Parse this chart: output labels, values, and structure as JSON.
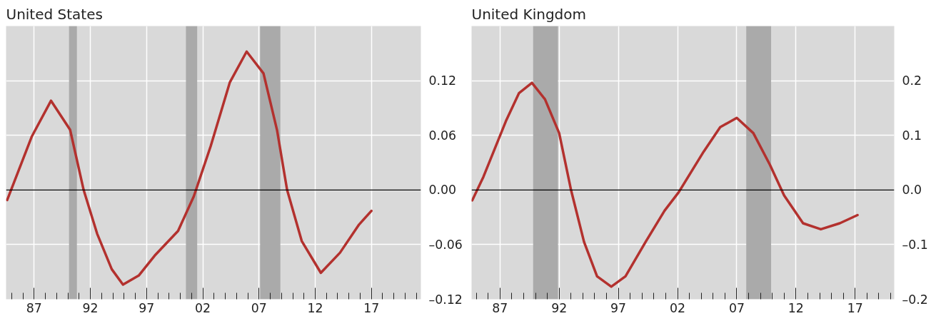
{
  "chart_data": [
    {
      "type": "line",
      "title": "United States",
      "x": [
        1984.6,
        1986.8,
        1988.5,
        1990.2,
        1991.4,
        1992.6,
        1993.9,
        1994.9,
        1996.3,
        1997.8,
        1999.8,
        2001.2,
        2002.7,
        2004.4,
        2005.9,
        2007.4,
        2008.6,
        2009.5,
        2010.8,
        2012.5,
        2014.2,
        2015.9,
        2017.0
      ],
      "series": [
        {
          "color": "#b3312e",
          "values": [
            -0.011,
            0.059,
            0.098,
            0.066,
            0.0,
            -0.048,
            -0.087,
            -0.104,
            -0.094,
            -0.071,
            -0.045,
            -0.007,
            0.048,
            0.118,
            0.152,
            0.128,
            0.066,
            0.0,
            -0.056,
            -0.091,
            -0.069,
            -0.038,
            -0.023
          ]
        }
      ],
      "xlim": [
        1984.5,
        2021.4
      ],
      "xticks": [
        {
          "value": 1987,
          "label": "87"
        },
        {
          "value": 1992,
          "label": "92"
        },
        {
          "value": 1997,
          "label": "97"
        },
        {
          "value": 2002,
          "label": "02"
        },
        {
          "value": 2007,
          "label": "07"
        },
        {
          "value": 2012,
          "label": "12"
        },
        {
          "value": 2017,
          "label": "17"
        }
      ],
      "ylim": [
        -0.12,
        0.18
      ],
      "yticks": [
        {
          "value": -0.12,
          "label": "–0.12"
        },
        {
          "value": -0.06,
          "label": "–0.06"
        },
        {
          "value": 0,
          "label": "0.00"
        },
        0.06,
        0.12
      ],
      "grid": true,
      "bands": [
        {
          "axis": "x",
          "from": 1990.1,
          "to": 1990.8,
          "color": "#aaaaaa"
        },
        {
          "axis": "x",
          "from": 2000.5,
          "to": 2001.5,
          "color": "#aaaaaa"
        },
        {
          "axis": "x",
          "from": 2007.1,
          "to": 2008.9,
          "color": "#aaaaaa"
        }
      ],
      "ref_lines": [
        {
          "axis": "y",
          "value": 0,
          "color": "#000000"
        }
      ]
    },
    {
      "type": "line",
      "title": "United Kingdom",
      "x": [
        1984.66,
        1985.6,
        1987.5,
        1988.6,
        1989.7,
        1990.8,
        1992.0,
        1993.0,
        1994.1,
        1995.2,
        1996.4,
        1997.6,
        1999.3,
        2000.9,
        2002.1,
        2004.2,
        2005.6,
        2007.0,
        2008.4,
        2009.8,
        2011.0,
        2012.6,
        2014.1,
        2015.7,
        2017.2
      ],
      "series": [
        {
          "color": "#b3312e",
          "values": [
            -0.019,
            0.024,
            0.126,
            0.177,
            0.196,
            0.166,
            0.104,
            0.0,
            -0.095,
            -0.158,
            -0.177,
            -0.158,
            -0.095,
            -0.038,
            -0.004,
            0.07,
            0.115,
            0.132,
            0.104,
            0.046,
            -0.01,
            -0.061,
            -0.072,
            -0.061,
            -0.046
          ]
        }
      ],
      "xlim": [
        1984.6,
        2020.3
      ],
      "xticks": [
        {
          "value": 1987,
          "label": "87"
        },
        {
          "value": 1992,
          "label": "92"
        },
        {
          "value": 1997,
          "label": "97"
        },
        {
          "value": 2002,
          "label": "02"
        },
        {
          "value": 2007,
          "label": "07"
        },
        {
          "value": 2012,
          "label": "12"
        },
        {
          "value": 2017,
          "label": "17"
        }
      ],
      "ylim": [
        -0.2,
        0.3
      ],
      "yticks": [
        {
          "value": -0.2,
          "label": "–0.2"
        },
        {
          "value": -0.1,
          "label": "–0.1"
        },
        {
          "value": 0,
          "label": "0.0"
        },
        0.1,
        0.2
      ],
      "grid": true,
      "bands": [
        {
          "axis": "x",
          "from": 1989.8,
          "to": 1991.9,
          "color": "#aaaaaa"
        },
        {
          "axis": "x",
          "from": 2007.8,
          "to": 2009.9,
          "color": "#aaaaaa"
        }
      ],
      "ref_lines": [
        {
          "axis": "y",
          "value": 0,
          "color": "#000000"
        }
      ]
    }
  ]
}
